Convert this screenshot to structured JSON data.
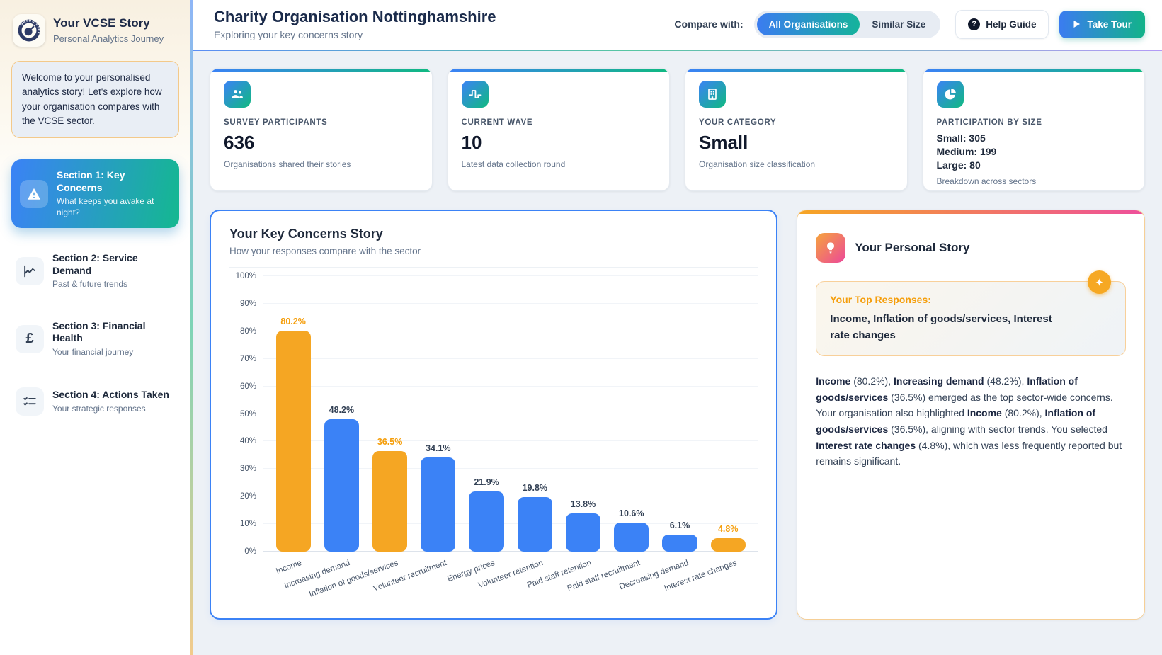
{
  "app": {
    "title": "Your VCSE Story",
    "subtitle": "Personal Analytics Journey",
    "welcome": "Welcome to your personalised analytics story! Let's explore how your organisation compares with the VCSE sector."
  },
  "sidebar": {
    "sections": [
      {
        "title": "Section 1: Key Concerns",
        "subtitle": "What keeps you awake at night?",
        "active": true
      },
      {
        "title": "Section 2: Service Demand",
        "subtitle": "Past & future trends",
        "active": false
      },
      {
        "title": "Section 3: Financial Health",
        "subtitle": "Your financial journey",
        "active": false
      },
      {
        "title": "Section 4: Actions Taken",
        "subtitle": "Your strategic responses",
        "active": false
      }
    ]
  },
  "header": {
    "title": "Charity Organisation Nottinghamshire",
    "subtitle": "Exploring your key concerns story",
    "compare_label": "Compare with:",
    "toggle": {
      "options": [
        "All Organisations",
        "Similar Size"
      ],
      "selected": "All Organisations"
    },
    "help_button": "Help Guide",
    "tour_button": "Take Tour"
  },
  "stats": {
    "cards": [
      {
        "label": "SURVEY PARTICIPANTS",
        "value": "636",
        "description": "Organisations shared their stories",
        "icon": "people-icon"
      },
      {
        "label": "CURRENT WAVE",
        "value": "10",
        "description": "Latest data collection round",
        "icon": "wave-icon"
      },
      {
        "label": "YOUR CATEGORY",
        "value": "Small",
        "description": "Organisation size classification",
        "icon": "building-icon"
      },
      {
        "label": "PARTICIPATION BY SIZE",
        "breakdown": [
          "Small: 305",
          "Medium: 199",
          "Large: 80"
        ],
        "description": "Breakdown across sectors",
        "icon": "pie-chart-icon"
      }
    ]
  },
  "chart_card": {
    "title": "Your Key Concerns Story",
    "subtitle": "How your responses compare with the sector"
  },
  "chart_data": {
    "type": "bar",
    "title": "Your Key Concerns Story",
    "categories": [
      "Income",
      "Increasing demand",
      "Inflation of goods/services",
      "Volunteer recruitment",
      "Energy prices",
      "Volunteer retention",
      "Paid staff retention",
      "Paid staff recruitment",
      "Decreasing demand",
      "Interest rate changes"
    ],
    "values": [
      80.2,
      48.2,
      36.5,
      34.1,
      21.9,
      19.8,
      13.8,
      10.6,
      6.1,
      4.8
    ],
    "xlabel": "",
    "ylabel": "",
    "ylim": [
      0,
      100
    ],
    "ytick_step": 10,
    "ytick_suffix": "%",
    "grid": true,
    "legend": false,
    "bar_color": "#3b82f6",
    "highlight_color": "#f5a623",
    "highlight_indices": [
      0,
      2,
      9
    ],
    "value_label_color": "#334155",
    "highlight_label_color": "#f59e0b"
  },
  "personal_story": {
    "title": "Your Personal Story",
    "top_responses_label": "Your Top Responses:",
    "top_responses": "Income, Inflation of goods/services, Interest rate changes",
    "paragraph_segments": [
      {
        "text": "Income",
        "bold": true
      },
      {
        "text": " (80.2%), ",
        "bold": false
      },
      {
        "text": "Increasing demand",
        "bold": true
      },
      {
        "text": " (48.2%), ",
        "bold": false
      },
      {
        "text": "Inflation of goods/services",
        "bold": true
      },
      {
        "text": " (36.5%) emerged as the top sector-wide concerns. Your organisation also highlighted ",
        "bold": false
      },
      {
        "text": "Income",
        "bold": true
      },
      {
        "text": " (80.2%), ",
        "bold": false
      },
      {
        "text": "Inflation of goods/services",
        "bold": true
      },
      {
        "text": " (36.5%), aligning with sector trends. You selected ",
        "bold": false
      },
      {
        "text": "Interest rate changes",
        "bold": true
      },
      {
        "text": " (4.8%), which was less frequently reported but remains significant.",
        "bold": false
      }
    ]
  },
  "colors": {
    "accent_gradient_start": "#3b82f6",
    "accent_gradient_end": "#10b981",
    "story_gradient_start": "#f6a623",
    "story_gradient_end": "#ec4899",
    "bar_blue": "#3b82f6",
    "bar_orange": "#f5a623",
    "background": "#edf1f6"
  }
}
